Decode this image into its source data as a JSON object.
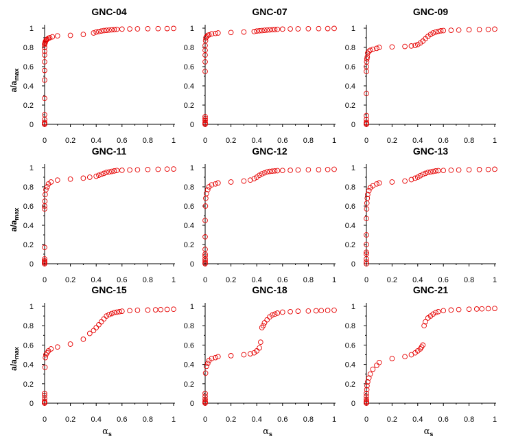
{
  "chart_data": {
    "type": "scatter",
    "layout": "3x3 grid",
    "marker": {
      "shape": "open-circle",
      "color": "#e60000"
    },
    "x_axis": {
      "label": "α",
      "label_subscript": "s",
      "lim": [
        0,
        1
      ],
      "ticks": [
        "0",
        "0.2",
        "0.4",
        "0.6",
        "0.8",
        "1"
      ]
    },
    "y_axis": {
      "label": "a/a",
      "label_subscript": "max",
      "lim": [
        0,
        1
      ],
      "ticks": [
        "0",
        "0.2",
        "0.4",
        "0.6",
        "0.8",
        "1"
      ]
    },
    "panels": [
      {
        "title": "GNC-04",
        "x": [
          0,
          0,
          0,
          0,
          0,
          0,
          0,
          0,
          0,
          0,
          0,
          0,
          0,
          0.002,
          0.004,
          0.006,
          0.01,
          0.015,
          0.02,
          0.03,
          0.04,
          0.06,
          0.1,
          0.2,
          0.3,
          0.38,
          0.4,
          0.42,
          0.44,
          0.46,
          0.48,
          0.5,
          0.52,
          0.54,
          0.56,
          0.6,
          0.66,
          0.72,
          0.8,
          0.88,
          0.95,
          1.0
        ],
        "y": [
          0,
          0.01,
          0.02,
          0.05,
          0.1,
          0.27,
          0.46,
          0.56,
          0.65,
          0.72,
          0.76,
          0.8,
          0.83,
          0.84,
          0.85,
          0.86,
          0.87,
          0.88,
          0.885,
          0.895,
          0.9,
          0.91,
          0.92,
          0.925,
          0.935,
          0.95,
          0.96,
          0.965,
          0.97,
          0.975,
          0.978,
          0.98,
          0.983,
          0.985,
          0.988,
          0.99,
          0.992,
          0.993,
          0.994,
          0.995,
          0.996,
          0.997
        ]
      },
      {
        "title": "GNC-07",
        "x": [
          0,
          0,
          0,
          0,
          0,
          0,
          0,
          0,
          0,
          0,
          0,
          0.003,
          0.006,
          0.01,
          0.02,
          0.03,
          0.05,
          0.08,
          0.1,
          0.2,
          0.3,
          0.38,
          0.4,
          0.42,
          0.44,
          0.46,
          0.48,
          0.5,
          0.52,
          0.54,
          0.56,
          0.6,
          0.66,
          0.72,
          0.8,
          0.88,
          0.95,
          1.0
        ],
        "y": [
          0,
          0.01,
          0.02,
          0.04,
          0.06,
          0.08,
          0.55,
          0.65,
          0.72,
          0.77,
          0.82,
          0.87,
          0.9,
          0.91,
          0.925,
          0.93,
          0.94,
          0.945,
          0.95,
          0.955,
          0.96,
          0.965,
          0.97,
          0.973,
          0.975,
          0.978,
          0.98,
          0.982,
          0.984,
          0.986,
          0.988,
          0.99,
          0.992,
          0.993,
          0.994,
          0.995,
          0.996,
          0.997
        ]
      },
      {
        "title": "GNC-09",
        "x": [
          0,
          0,
          0,
          0,
          0,
          0,
          0,
          0,
          0.002,
          0.004,
          0.007,
          0.01,
          0.02,
          0.03,
          0.05,
          0.08,
          0.1,
          0.2,
          0.3,
          0.35,
          0.38,
          0.4,
          0.42,
          0.44,
          0.46,
          0.48,
          0.5,
          0.52,
          0.54,
          0.56,
          0.58,
          0.6,
          0.66,
          0.72,
          0.8,
          0.88,
          0.95,
          1.0
        ],
        "y": [
          0,
          0.01,
          0.02,
          0.05,
          0.09,
          0.32,
          0.55,
          0.6,
          0.65,
          0.68,
          0.7,
          0.74,
          0.76,
          0.77,
          0.78,
          0.79,
          0.8,
          0.805,
          0.81,
          0.815,
          0.82,
          0.83,
          0.845,
          0.865,
          0.89,
          0.915,
          0.935,
          0.95,
          0.96,
          0.967,
          0.972,
          0.975,
          0.978,
          0.98,
          0.983,
          0.985,
          0.987,
          0.99
        ]
      },
      {
        "title": "GNC-11",
        "x": [
          0,
          0,
          0,
          0,
          0,
          0,
          0,
          0,
          0.002,
          0.005,
          0.01,
          0.02,
          0.03,
          0.05,
          0.1,
          0.2,
          0.3,
          0.35,
          0.4,
          0.42,
          0.44,
          0.46,
          0.48,
          0.5,
          0.52,
          0.54,
          0.56,
          0.6,
          0.66,
          0.72,
          0.8,
          0.88,
          0.95,
          1.0
        ],
        "y": [
          0,
          0.01,
          0.02,
          0.03,
          0.05,
          0.17,
          0.57,
          0.6,
          0.65,
          0.72,
          0.77,
          0.8,
          0.83,
          0.85,
          0.87,
          0.88,
          0.89,
          0.9,
          0.91,
          0.92,
          0.93,
          0.94,
          0.95,
          0.955,
          0.96,
          0.965,
          0.97,
          0.972,
          0.975,
          0.977,
          0.98,
          0.982,
          0.984,
          0.985
        ]
      },
      {
        "title": "GNC-12",
        "x": [
          0,
          0,
          0,
          0,
          0,
          0,
          0,
          0,
          0,
          0.002,
          0.005,
          0.01,
          0.02,
          0.03,
          0.05,
          0.08,
          0.1,
          0.2,
          0.3,
          0.35,
          0.38,
          0.4,
          0.42,
          0.44,
          0.46,
          0.48,
          0.5,
          0.52,
          0.54,
          0.56,
          0.6,
          0.66,
          0.72,
          0.8,
          0.88,
          0.95,
          1.0
        ],
        "y": [
          0,
          0.01,
          0.03,
          0.05,
          0.08,
          0.1,
          0.15,
          0.28,
          0.45,
          0.6,
          0.68,
          0.73,
          0.77,
          0.8,
          0.82,
          0.83,
          0.84,
          0.85,
          0.86,
          0.87,
          0.885,
          0.9,
          0.92,
          0.935,
          0.945,
          0.955,
          0.96,
          0.963,
          0.966,
          0.968,
          0.97,
          0.972,
          0.975,
          0.977,
          0.978,
          0.98,
          0.982
        ]
      },
      {
        "title": "GNC-13",
        "x": [
          0,
          0,
          0,
          0,
          0,
          0,
          0,
          0,
          0.002,
          0.004,
          0.007,
          0.01,
          0.02,
          0.03,
          0.05,
          0.08,
          0.1,
          0.2,
          0.3,
          0.35,
          0.38,
          0.4,
          0.42,
          0.44,
          0.46,
          0.48,
          0.5,
          0.52,
          0.54,
          0.56,
          0.6,
          0.66,
          0.72,
          0.8,
          0.88,
          0.95,
          1.0
        ],
        "y": [
          0,
          0.02,
          0.05,
          0.1,
          0.12,
          0.2,
          0.3,
          0.47,
          0.57,
          0.63,
          0.68,
          0.72,
          0.76,
          0.79,
          0.81,
          0.83,
          0.84,
          0.85,
          0.86,
          0.875,
          0.89,
          0.9,
          0.915,
          0.93,
          0.94,
          0.95,
          0.955,
          0.96,
          0.965,
          0.968,
          0.97,
          0.973,
          0.975,
          0.977,
          0.979,
          0.981,
          0.983
        ]
      },
      {
        "title": "GNC-15",
        "x": [
          0,
          0,
          0,
          0,
          0,
          0,
          0.003,
          0.006,
          0.01,
          0.02,
          0.03,
          0.05,
          0.1,
          0.2,
          0.3,
          0.35,
          0.38,
          0.4,
          0.42,
          0.44,
          0.46,
          0.48,
          0.5,
          0.52,
          0.54,
          0.56,
          0.58,
          0.6,
          0.66,
          0.72,
          0.8,
          0.86,
          0.9,
          0.95,
          1.0
        ],
        "y": [
          0,
          0.01,
          0.02,
          0.05,
          0.08,
          0.1,
          0.37,
          0.47,
          0.5,
          0.52,
          0.54,
          0.56,
          0.58,
          0.61,
          0.66,
          0.72,
          0.75,
          0.78,
          0.81,
          0.84,
          0.87,
          0.9,
          0.915,
          0.925,
          0.935,
          0.94,
          0.945,
          0.95,
          0.955,
          0.96,
          0.962,
          0.964,
          0.966,
          0.968,
          0.97
        ]
      },
      {
        "title": "GNC-18",
        "x": [
          0,
          0,
          0,
          0,
          0,
          0,
          0.003,
          0.01,
          0.02,
          0.03,
          0.05,
          0.08,
          0.1,
          0.2,
          0.3,
          0.35,
          0.38,
          0.4,
          0.42,
          0.43,
          0.44,
          0.45,
          0.46,
          0.48,
          0.5,
          0.52,
          0.54,
          0.56,
          0.6,
          0.66,
          0.72,
          0.8,
          0.86,
          0.9,
          0.95,
          1.0
        ],
        "y": [
          0,
          0.01,
          0.02,
          0.04,
          0.07,
          0.1,
          0.31,
          0.38,
          0.41,
          0.44,
          0.46,
          0.47,
          0.48,
          0.49,
          0.5,
          0.51,
          0.52,
          0.54,
          0.57,
          0.63,
          0.78,
          0.8,
          0.83,
          0.86,
          0.89,
          0.91,
          0.92,
          0.93,
          0.94,
          0.945,
          0.95,
          0.952,
          0.954,
          0.956,
          0.958,
          0.96
        ]
      },
      {
        "title": "GNC-21",
        "x": [
          0,
          0,
          0,
          0,
          0,
          0,
          0.003,
          0.005,
          0.01,
          0.02,
          0.03,
          0.05,
          0.08,
          0.1,
          0.2,
          0.3,
          0.35,
          0.38,
          0.4,
          0.42,
          0.43,
          0.44,
          0.45,
          0.46,
          0.48,
          0.5,
          0.52,
          0.54,
          0.56,
          0.6,
          0.66,
          0.72,
          0.8,
          0.86,
          0.9,
          0.95,
          1.0
        ],
        "y": [
          0,
          0.01,
          0.02,
          0.04,
          0.07,
          0.1,
          0.14,
          0.18,
          0.22,
          0.26,
          0.3,
          0.35,
          0.39,
          0.42,
          0.46,
          0.48,
          0.5,
          0.52,
          0.54,
          0.56,
          0.58,
          0.6,
          0.8,
          0.84,
          0.88,
          0.9,
          0.92,
          0.935,
          0.945,
          0.955,
          0.962,
          0.967,
          0.97,
          0.972,
          0.974,
          0.976,
          0.978
        ]
      }
    ]
  }
}
